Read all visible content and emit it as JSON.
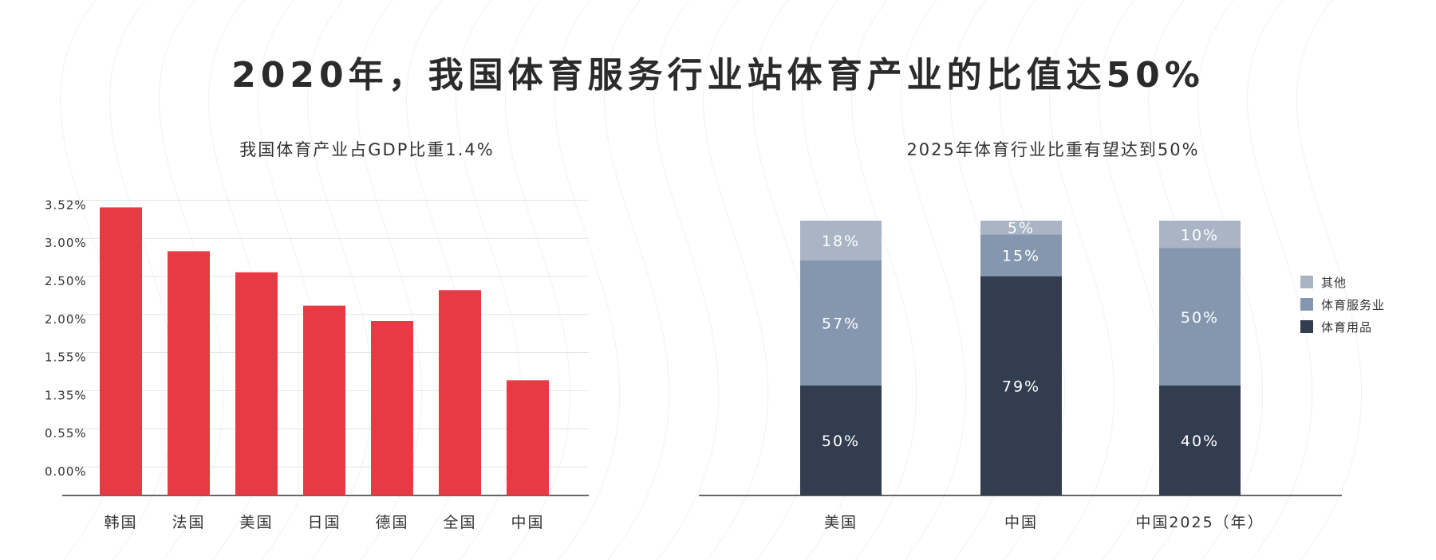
{
  "title": "2020年，我国体育服务行业站体育产业的比值达50%",
  "colors": {
    "bar_red": "#e83a45",
    "other": "#a9b4c4",
    "service": "#8597af",
    "goods": "#323d50",
    "axis": "#333333",
    "grid": "#e4e4e4"
  },
  "chart_data": [
    {
      "type": "bar",
      "title": "我国体育产业占GDP比重1.4%",
      "categories": [
        "韩国",
        "法国",
        "美国",
        "日国",
        "德国",
        "全国",
        "中国"
      ],
      "y_tick_labels": [
        "3.52%",
        "3.00%",
        "2.50%",
        "2.00%",
        "1.55%",
        "1.35%",
        "0.55%",
        "0.00%"
      ],
      "values": [
        3.55,
        3.01,
        2.75,
        2.34,
        2.15,
        2.53,
        1.42
      ],
      "ylim": [
        0,
        3.75
      ],
      "grid": true
    },
    {
      "type": "bar",
      "stacked": true,
      "title": "2025年体育行业比重有望达到50%",
      "categories": [
        "美国",
        "中国",
        "中国2025（年）"
      ],
      "series": [
        {
          "name": "体育用品",
          "color": "#323d50",
          "values": [
            50,
            79,
            40
          ],
          "labels": [
            "50%",
            "79%",
            "40%"
          ]
        },
        {
          "name": "体育服务业",
          "color": "#8597af",
          "values": [
            57,
            15,
            50
          ],
          "labels": [
            "57%",
            "15%",
            "50%"
          ]
        },
        {
          "name": "其他",
          "color": "#a9b4c4",
          "values": [
            18,
            5,
            10
          ],
          "labels": [
            "18%",
            "5%",
            "10%"
          ]
        }
      ],
      "legend": [
        "其他",
        "体育服务业",
        "体育用品"
      ],
      "legend_position": "right"
    }
  ]
}
